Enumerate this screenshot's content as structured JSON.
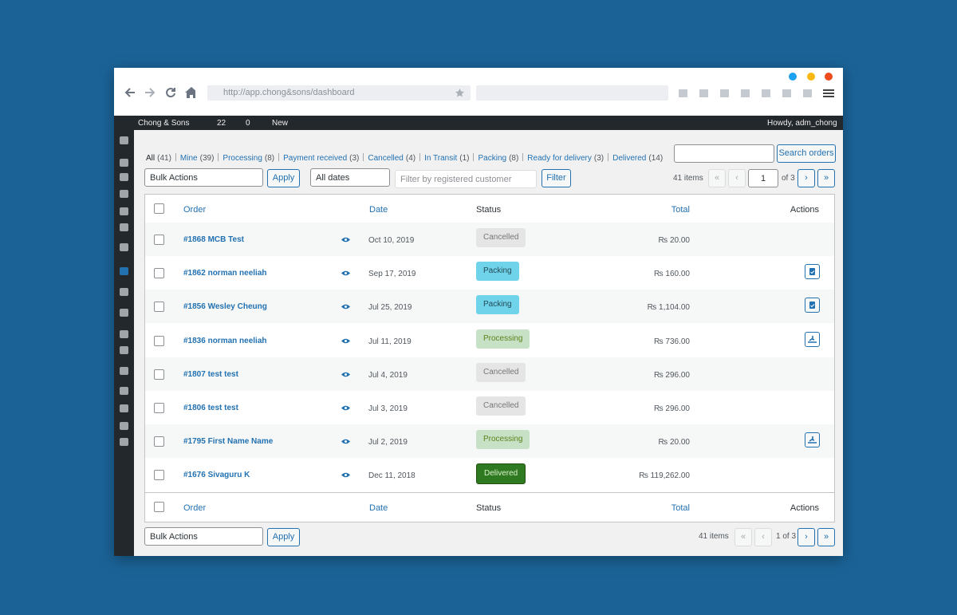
{
  "browser": {
    "url": "http://app.chong&sons/dashboard"
  },
  "adminbar": {
    "site": "Chong & Sons",
    "updates": "22",
    "comments": "0",
    "new": "New",
    "howdy": "Howdy, adm_chong"
  },
  "filters": [
    {
      "label": "All",
      "count": "(41)"
    },
    {
      "label": "Mine",
      "count": "(39)"
    },
    {
      "label": "Processing",
      "count": "(8)"
    },
    {
      "label": "Payment received",
      "count": "(3)"
    },
    {
      "label": "Cancelled",
      "count": "(4)"
    },
    {
      "label": "In Transit",
      "count": "(1)"
    },
    {
      "label": "Packing",
      "count": "(8)"
    },
    {
      "label": "Ready for delivery",
      "count": "(3)"
    },
    {
      "label": "Delivered",
      "count": "(14)"
    }
  ],
  "controls": {
    "bulk": "Bulk Actions",
    "apply": "Apply",
    "dates": "All dates",
    "customer": "Filter by registered customer",
    "filter": "Filter",
    "search": "Search orders"
  },
  "pagination": {
    "items": "41 items",
    "first": "«",
    "prev": "‹",
    "page": "1",
    "of": "of 3",
    "next": "›",
    "last": "»",
    "bottom_page": "1 of 3"
  },
  "columns": [
    "Order",
    "Date",
    "Status",
    "Total",
    "Actions"
  ],
  "rows": [
    {
      "order": "#1868 MCB Test",
      "date": "Oct 10, 2019",
      "status": "Cancelled",
      "total": "₨ 20.00"
    },
    {
      "order": "#1862 norman neeliah",
      "date": "Sep 17, 2019",
      "status": "Packing",
      "total": "₨ 160.00"
    },
    {
      "order": "#1856 Wesley Cheung",
      "date": "Jul 25, 2019",
      "status": "Packing",
      "total": "₨ 1,104.00"
    },
    {
      "order": "#1836 norman neeliah",
      "date": "Jul 11, 2019",
      "status": "Processing",
      "total": "₨ 736.00"
    },
    {
      "order": "#1807 test test",
      "date": "Jul 4, 2019",
      "status": "Cancelled",
      "total": "₨ 296.00"
    },
    {
      "order": "#1806 test test",
      "date": "Jul 3, 2019",
      "status": "Cancelled",
      "total": "₨ 296.00"
    },
    {
      "order": "#1795 First Name Name",
      "date": "Jul 2, 2019",
      "status": "Processing",
      "total": "₨ 20.00"
    },
    {
      "order": "#1676 Sivaguru K",
      "date": "Dec 11, 2018",
      "status": "Delivered",
      "total": "₨ 119,262.00"
    }
  ]
}
